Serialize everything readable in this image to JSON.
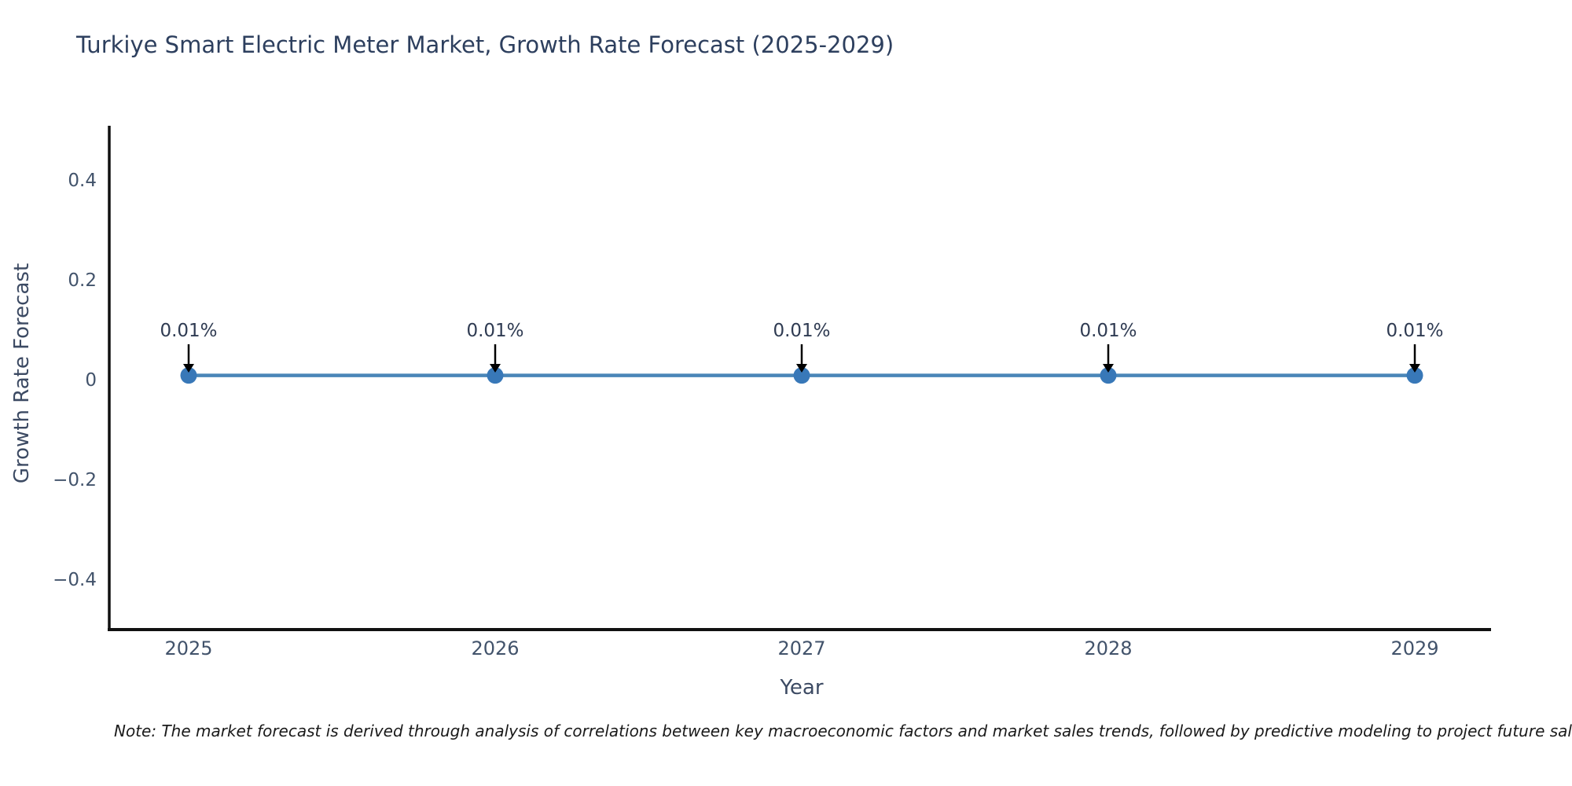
{
  "header": {
    "title": "Turkiye Smart Electric Meter Market, Growth Rate Forecast (2025-2029)"
  },
  "chart_data": {
    "type": "line",
    "title": "Turkiye Smart Electric Meter Market, Growth Rate Forecast (2025-2029)",
    "x": [
      2025,
      2026,
      2027,
      2028,
      2029
    ],
    "series": [
      {
        "name": "Growth Rate Forecast",
        "values": [
          0.01,
          0.01,
          0.01,
          0.01,
          0.01
        ]
      }
    ],
    "point_labels": [
      "0.01%",
      "0.01%",
      "0.01%",
      "0.01%",
      "0.01%"
    ],
    "xlabel": "Year",
    "ylabel": "Growth Rate Forecast",
    "yticks": [
      0.4,
      0.2,
      0,
      -0.2,
      -0.4
    ],
    "ylim": [
      -0.5,
      0.5
    ],
    "grid": false,
    "legend_position": "none",
    "colors": {
      "line": "#4a86b8",
      "marker": "#3878b8",
      "axis": "#111111",
      "annotation_arrow": "#000000",
      "tick_label": "#42536b",
      "annotation_text": "#2f3b52"
    }
  },
  "footer": {
    "note": "Note: The market forecast is derived through analysis of correlations between key macroeconomic factors and market sales trends, followed by predictive modeling to project future sales."
  }
}
